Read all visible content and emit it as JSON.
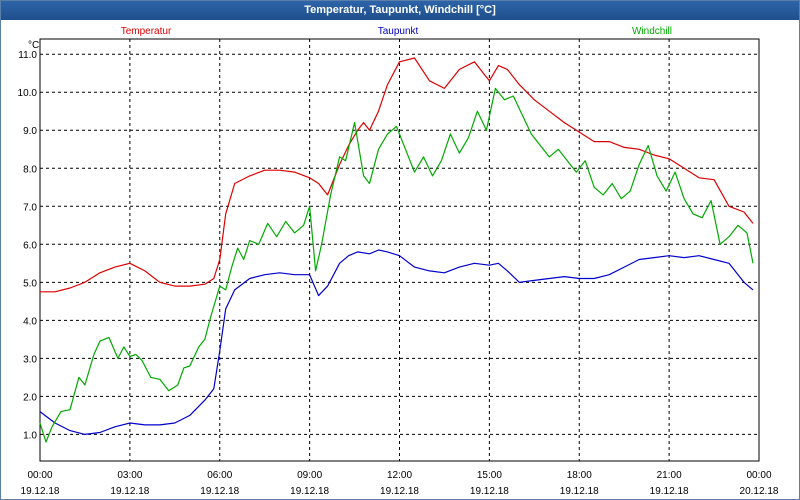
{
  "window": {
    "title": "Temperatur, Taupunkt, Windchill [°C]"
  },
  "chart_data": {
    "type": "line",
    "title": "Temperatur, Taupunkt, Windchill [°C]",
    "ylabel": "°C",
    "xlabel": "",
    "ylim": [
      0.3,
      11.4
    ],
    "xlim": [
      0,
      24
    ],
    "grid": true,
    "y_ticks": [
      "1.0",
      "2.0",
      "3.0",
      "4.0",
      "5.0",
      "6.0",
      "7.0",
      "8.0",
      "9.0",
      "10.0",
      "11.0"
    ],
    "y_tick_values": [
      1,
      2,
      3,
      4,
      5,
      6,
      7,
      8,
      9,
      10,
      11
    ],
    "x_ticks": [
      {
        "time": "00:00",
        "date": "19.12.18",
        "x": 0
      },
      {
        "time": "03:00",
        "date": "19.12.18",
        "x": 3
      },
      {
        "time": "06:00",
        "date": "19.12.18",
        "x": 6
      },
      {
        "time": "09:00",
        "date": "19.12.18",
        "x": 9
      },
      {
        "time": "12:00",
        "date": "19.12.18",
        "x": 12
      },
      {
        "time": "15:00",
        "date": "19.12.18",
        "x": 15
      },
      {
        "time": "18:00",
        "date": "19.12.18",
        "x": 18
      },
      {
        "time": "21:00",
        "date": "19.12.18",
        "x": 21
      },
      {
        "time": "00:00",
        "date": "20.12.18",
        "x": 24
      }
    ],
    "series": [
      {
        "name": "Temperatur",
        "color": "#dd0000",
        "x": [
          0,
          0.5,
          1,
          1.5,
          2,
          2.5,
          3,
          3.5,
          4,
          4.5,
          5,
          5.5,
          5.8,
          6,
          6.2,
          6.5,
          7,
          7.5,
          8,
          8.5,
          9,
          9.3,
          9.6,
          10,
          10.3,
          10.6,
          10.8,
          11,
          11.3,
          11.6,
          12,
          12.5,
          13,
          13.5,
          14,
          14.5,
          14.8,
          15,
          15.3,
          15.6,
          16,
          16.5,
          17,
          17.5,
          18,
          18.5,
          19,
          19.5,
          20,
          20.5,
          21,
          21.5,
          22,
          22.5,
          23,
          23.5,
          23.8
        ],
        "y": [
          4.75,
          4.75,
          4.85,
          5.0,
          5.25,
          5.4,
          5.5,
          5.3,
          5.0,
          4.9,
          4.9,
          4.95,
          5.1,
          5.6,
          6.8,
          7.6,
          7.8,
          7.95,
          7.95,
          7.9,
          7.75,
          7.6,
          7.3,
          8.1,
          8.6,
          9.0,
          9.2,
          9.0,
          9.5,
          10.2,
          10.8,
          10.9,
          10.3,
          10.1,
          10.6,
          10.8,
          10.5,
          10.3,
          10.7,
          10.6,
          10.2,
          9.8,
          9.5,
          9.2,
          8.95,
          8.7,
          8.7,
          8.55,
          8.5,
          8.35,
          8.25,
          8.0,
          7.75,
          7.7,
          7.0,
          6.85,
          6.55
        ]
      },
      {
        "name": "Taupunkt",
        "color": "#0000cc",
        "x": [
          0,
          0.5,
          1,
          1.5,
          2,
          2.5,
          3,
          3.5,
          4,
          4.5,
          5,
          5.5,
          5.8,
          6,
          6.2,
          6.5,
          7,
          7.5,
          8,
          8.5,
          9,
          9.3,
          9.6,
          10,
          10.3,
          10.6,
          11,
          11.3,
          11.6,
          12,
          12.5,
          13,
          13.5,
          14,
          14.5,
          15,
          15.3,
          15.6,
          16,
          16.5,
          17,
          17.5,
          18,
          18.5,
          19,
          19.5,
          20,
          20.5,
          21,
          21.5,
          22,
          22.5,
          23,
          23.5,
          23.8
        ],
        "y": [
          1.6,
          1.3,
          1.1,
          1.0,
          1.05,
          1.2,
          1.3,
          1.25,
          1.25,
          1.3,
          1.5,
          1.9,
          2.2,
          3.2,
          4.3,
          4.8,
          5.1,
          5.2,
          5.25,
          5.2,
          5.2,
          4.65,
          4.9,
          5.5,
          5.7,
          5.8,
          5.75,
          5.85,
          5.8,
          5.7,
          5.4,
          5.3,
          5.25,
          5.4,
          5.5,
          5.45,
          5.5,
          5.3,
          5.0,
          5.05,
          5.1,
          5.15,
          5.1,
          5.1,
          5.2,
          5.4,
          5.6,
          5.65,
          5.7,
          5.65,
          5.7,
          5.6,
          5.5,
          5.0,
          4.8
        ]
      },
      {
        "name": "Windchill",
        "color": "#00aa00",
        "x": [
          0,
          0.2,
          0.4,
          0.7,
          1,
          1.3,
          1.5,
          1.8,
          2,
          2.3,
          2.6,
          2.8,
          3,
          3.2,
          3.4,
          3.7,
          4,
          4.3,
          4.6,
          4.8,
          5,
          5.3,
          5.5,
          5.7,
          6,
          6.2,
          6.4,
          6.6,
          6.8,
          7,
          7.3,
          7.6,
          7.9,
          8.2,
          8.5,
          8.8,
          9,
          9.2,
          9.4,
          9.7,
          10,
          10.2,
          10.5,
          10.8,
          11,
          11.3,
          11.6,
          11.9,
          12.2,
          12.5,
          12.8,
          13.1,
          13.4,
          13.7,
          14,
          14.3,
          14.6,
          14.9,
          15.2,
          15.5,
          15.8,
          16.1,
          16.4,
          16.7,
          17,
          17.3,
          17.6,
          17.9,
          18.2,
          18.5,
          18.8,
          19.1,
          19.4,
          19.7,
          20,
          20.3,
          20.6,
          20.9,
          21.2,
          21.5,
          21.8,
          22.1,
          22.4,
          22.7,
          23,
          23.3,
          23.6,
          23.8
        ],
        "y": [
          1.3,
          0.8,
          1.2,
          1.6,
          1.65,
          2.5,
          2.3,
          3.1,
          3.45,
          3.55,
          3.0,
          3.3,
          3.05,
          3.1,
          2.95,
          2.5,
          2.45,
          2.15,
          2.3,
          2.75,
          2.8,
          3.3,
          3.5,
          4.1,
          4.9,
          4.8,
          5.4,
          5.9,
          5.6,
          6.1,
          6.0,
          6.55,
          6.2,
          6.6,
          6.3,
          6.5,
          7.0,
          5.3,
          6.0,
          7.3,
          8.3,
          8.2,
          9.2,
          7.8,
          7.6,
          8.5,
          8.9,
          9.1,
          8.5,
          7.9,
          8.3,
          7.8,
          8.2,
          8.9,
          8.4,
          8.8,
          9.5,
          9.0,
          10.1,
          9.8,
          9.9,
          9.4,
          8.9,
          8.6,
          8.3,
          8.5,
          8.2,
          7.9,
          8.2,
          7.5,
          7.3,
          7.6,
          7.2,
          7.4,
          8.1,
          8.6,
          7.8,
          7.4,
          7.9,
          7.2,
          6.8,
          6.7,
          7.15,
          6.0,
          6.2,
          6.5,
          6.3,
          5.5
        ]
      }
    ]
  }
}
